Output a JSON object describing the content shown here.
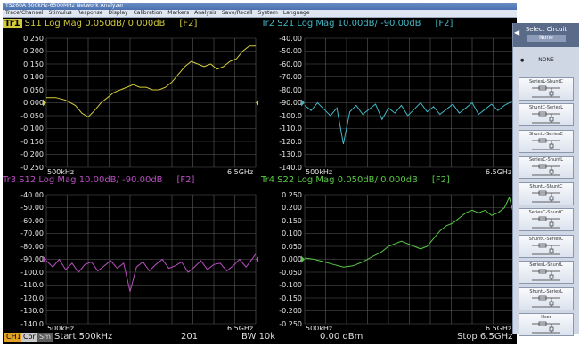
{
  "window": {
    "title": "TS260A 500kHz-6500MHz Network Analyzer"
  },
  "menu": [
    "Trace/Channel",
    "Stimulus",
    "Response",
    "Display",
    "Calibration",
    "Markers",
    "Analysis",
    "Save/Recall",
    "System",
    "Language"
  ],
  "colors": {
    "tr1": "#d2c93c",
    "tr2": "#43b6c3",
    "tr3": "#b84fc0",
    "tr4": "#58c845",
    "grid": "#5b5b5b",
    "axis_text": "#e6e6e6",
    "ch1_badge": "#e1a226"
  },
  "panels": [
    {
      "trace_label": "Tr1",
      "active": true,
      "title": "S11 Log Mag 0.050dB/ 0.000dB",
      "tag": "[F2]",
      "yticks": [
        "0.250",
        "0.200",
        "0.150",
        "0.100",
        "0.050",
        "0.000",
        "-0.050",
        "-0.100",
        "-0.150",
        "-0.200",
        "-0.250"
      ],
      "x_start": "500kHz",
      "x_stop": "6.5GHz",
      "ref_level": 0.0,
      "chart_data": {
        "type": "line",
        "series": [
          {
            "name": "S11",
            "x": [
              0.0005,
              0.3,
              0.6,
              0.9,
              1.1,
              1.3,
              1.5,
              1.7,
              1.9,
              2.1,
              2.3,
              2.5,
              2.7,
              2.9,
              3.1,
              3.3,
              3.5,
              3.7,
              3.9,
              4.1,
              4.3,
              4.5,
              4.7,
              4.9,
              5.1,
              5.3,
              5.5,
              5.7,
              5.9,
              6.1,
              6.3,
              6.5
            ],
            "y": [
              0.02,
              0.02,
              0.01,
              -0.01,
              -0.04,
              -0.055,
              -0.03,
              0.0,
              0.02,
              0.04,
              0.05,
              0.06,
              0.07,
              0.06,
              0.06,
              0.05,
              0.05,
              0.06,
              0.08,
              0.11,
              0.14,
              0.16,
              0.15,
              0.14,
              0.15,
              0.13,
              0.14,
              0.16,
              0.17,
              0.2,
              0.22,
              0.22
            ]
          }
        ],
        "xlim": [
          0.0005,
          6.5
        ],
        "ylim": [
          -0.25,
          0.25
        ]
      }
    },
    {
      "trace_label": "Tr2",
      "active": false,
      "title": "S21 Log Mag 10.00dB/ -90.00dB",
      "tag": "[F2]",
      "yticks": [
        "-40.00",
        "-50.00",
        "-60.00",
        "-70.00",
        "-80.00",
        "-90.00",
        "-100.0",
        "-110.0",
        "-120.0",
        "-130.0",
        "-140.0"
      ],
      "x_start": "500kHz",
      "x_stop": "6.5GHz",
      "ref_level": -90.0,
      "chart_data": {
        "type": "line",
        "series": [
          {
            "name": "S21",
            "x": [
              0.0005,
              0.2,
              0.4,
              0.6,
              0.8,
              1.0,
              1.2,
              1.4,
              1.6,
              1.8,
              2.0,
              2.2,
              2.4,
              2.6,
              2.8,
              3.0,
              3.2,
              3.4,
              3.6,
              3.8,
              4.0,
              4.2,
              4.4,
              4.6,
              4.8,
              5.0,
              5.2,
              5.4,
              5.6,
              5.8,
              6.0,
              6.2,
              6.5
            ],
            "y": [
              -92,
              -96,
              -90,
              -95,
              -100,
              -94,
              -122,
              -97,
              -92,
              -99,
              -95,
              -91,
              -103,
              -94,
              -98,
              -92,
              -100,
              -95,
              -90,
              -97,
              -93,
              -99,
              -95,
              -91,
              -98,
              -94,
              -90,
              -99,
              -95,
              -91,
              -96,
              -92,
              -88
            ]
          }
        ],
        "xlim": [
          0.0005,
          6.5
        ],
        "ylim": [
          -140,
          -40
        ]
      }
    },
    {
      "trace_label": "Tr3",
      "active": false,
      "title": "S12 Log Mag 10.00dB/ -90.00dB",
      "tag": "[F2]",
      "yticks": [
        "-40.00",
        "-50.00",
        "-60.00",
        "-70.00",
        "-80.00",
        "-90.00",
        "-100.0",
        "-110.0",
        "-120.0",
        "-130.0",
        "-140.0"
      ],
      "x_start": "500kHz",
      "x_stop": "6.5GHz",
      "ref_level": -90.0,
      "chart_data": {
        "type": "line",
        "series": [
          {
            "name": "S12",
            "x": [
              0.0005,
              0.2,
              0.4,
              0.6,
              0.8,
              1.0,
              1.2,
              1.4,
              1.6,
              1.8,
              2.0,
              2.2,
              2.4,
              2.6,
              2.8,
              3.0,
              3.2,
              3.4,
              3.6,
              3.8,
              4.0,
              4.2,
              4.4,
              4.6,
              4.8,
              5.0,
              5.2,
              5.4,
              5.6,
              5.8,
              6.0,
              6.2,
              6.5
            ],
            "y": [
              -91,
              -96,
              -90,
              -98,
              -93,
              -100,
              -94,
              -92,
              -99,
              -95,
              -91,
              -97,
              -93,
              -115,
              -96,
              -92,
              -99,
              -94,
              -90,
              -97,
              -95,
              -92,
              -100,
              -96,
              -91,
              -98,
              -94,
              -93,
              -99,
              -95,
              -90,
              -96,
              -86
            ]
          }
        ],
        "xlim": [
          0.0005,
          6.5
        ],
        "ylim": [
          -140,
          -40
        ]
      }
    },
    {
      "trace_label": "Tr4",
      "active": false,
      "title": "S22 Log Mag 0.050dB/ 0.000dB",
      "tag": "[F2]",
      "yticks": [
        "0.250",
        "0.200",
        "0.150",
        "0.100",
        "0.050",
        "0.000",
        "-0.050",
        "-0.100",
        "-0.150",
        "-0.200",
        "-0.250"
      ],
      "x_start": "500kHz",
      "x_stop": "6.5GHz",
      "ref_level": 0.0,
      "chart_data": {
        "type": "line",
        "series": [
          {
            "name": "S22",
            "x": [
              0.0005,
              0.3,
              0.6,
              0.9,
              1.2,
              1.5,
              1.8,
              2.1,
              2.4,
              2.6,
              2.8,
              3.0,
              3.2,
              3.4,
              3.6,
              3.8,
              4.0,
              4.2,
              4.4,
              4.6,
              4.8,
              5.0,
              5.2,
              5.4,
              5.6,
              5.8,
              6.0,
              6.2,
              6.35,
              6.5
            ],
            "y": [
              0.005,
              0.0,
              -0.01,
              -0.02,
              -0.03,
              -0.025,
              -0.01,
              0.01,
              0.03,
              0.05,
              0.06,
              0.07,
              0.06,
              0.05,
              0.04,
              0.05,
              0.08,
              0.11,
              0.13,
              0.14,
              0.16,
              0.18,
              0.19,
              0.18,
              0.19,
              0.17,
              0.18,
              0.2,
              0.24,
              0.17
            ]
          }
        ],
        "xlim": [
          0.0005,
          6.5
        ],
        "ylim": [
          -0.25,
          0.25
        ]
      }
    }
  ],
  "status": {
    "channel": "CH1",
    "cor": "Cor",
    "smo": "Sm",
    "start": "Start 500kHz",
    "points": "201",
    "ifbw": "BW 10k",
    "power": "0.00 dBm",
    "stop": "Stop 6.5GHz"
  },
  "sidebar": {
    "title": "Select Circuit",
    "current": "None",
    "items": [
      {
        "label": "NONE",
        "selected": true
      },
      {
        "label": "SeriesL-ShuntC"
      },
      {
        "label": "ShuntC-SeriesL"
      },
      {
        "label": "ShuntL-SeriesC"
      },
      {
        "label": "SeriesC-ShuntL"
      },
      {
        "label": "ShuntL-ShuntC"
      },
      {
        "label": "SeriesC-ShuntC"
      },
      {
        "label": "ShuntC-SeriesC"
      },
      {
        "label": "SeriesL-ShuntL"
      },
      {
        "label": "ShuntL-SeriesL"
      },
      {
        "label": "User"
      }
    ]
  }
}
